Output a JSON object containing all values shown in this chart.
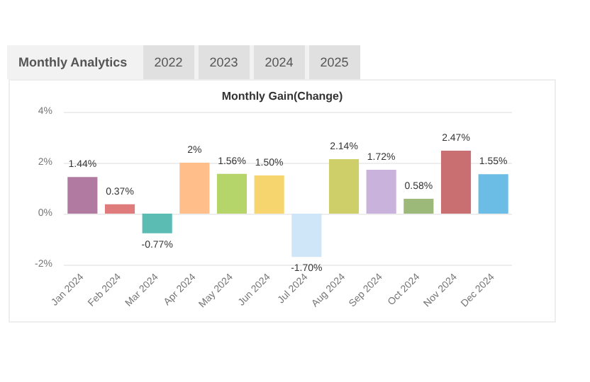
{
  "chart_data": {
    "type": "bar",
    "title": "Monthly Gain(Change)",
    "annotations": [
      "Monthly Analytics",
      "2022",
      "2023",
      "2024",
      "2025"
    ],
    "categories": [
      "Jan 2024",
      "Feb 2024",
      "Mar 2024",
      "Apr 2024",
      "May 2024",
      "Jun 2024",
      "Jul 2024",
      "Aug 2024",
      "Sep 2024",
      "Oct 2024",
      "Nov 2024",
      "Dec 2024"
    ],
    "values": [
      1.44,
      0.37,
      -0.77,
      2,
      1.56,
      1.5,
      -1.7,
      2.14,
      1.72,
      0.58,
      2.47,
      1.55
    ],
    "value_labels": [
      "1.44%",
      "0.37%",
      "-0.77%",
      "2%",
      "1.56%",
      "1.50%",
      "-1.70%",
      "2.14%",
      "1.72%",
      "0.58%",
      "2.47%",
      "1.55%"
    ],
    "colors": [
      "#b07aa1",
      "#e07b7b",
      "#5bbcb4",
      "#ffbe8a",
      "#b5d46a",
      "#f7d56e",
      "#cfe6f8",
      "#cfcf6a",
      "#c9b3dc",
      "#9cb97a",
      "#c96f72",
      "#6cbde6"
    ],
    "ylim": [
      -2,
      4
    ],
    "yticks": [
      {
        "value": -2,
        "label": "-2%"
      },
      {
        "value": 0,
        "label": "0%"
      },
      {
        "value": 2,
        "label": "2%"
      },
      {
        "value": 4,
        "label": "4%"
      }
    ],
    "grid": "y"
  }
}
